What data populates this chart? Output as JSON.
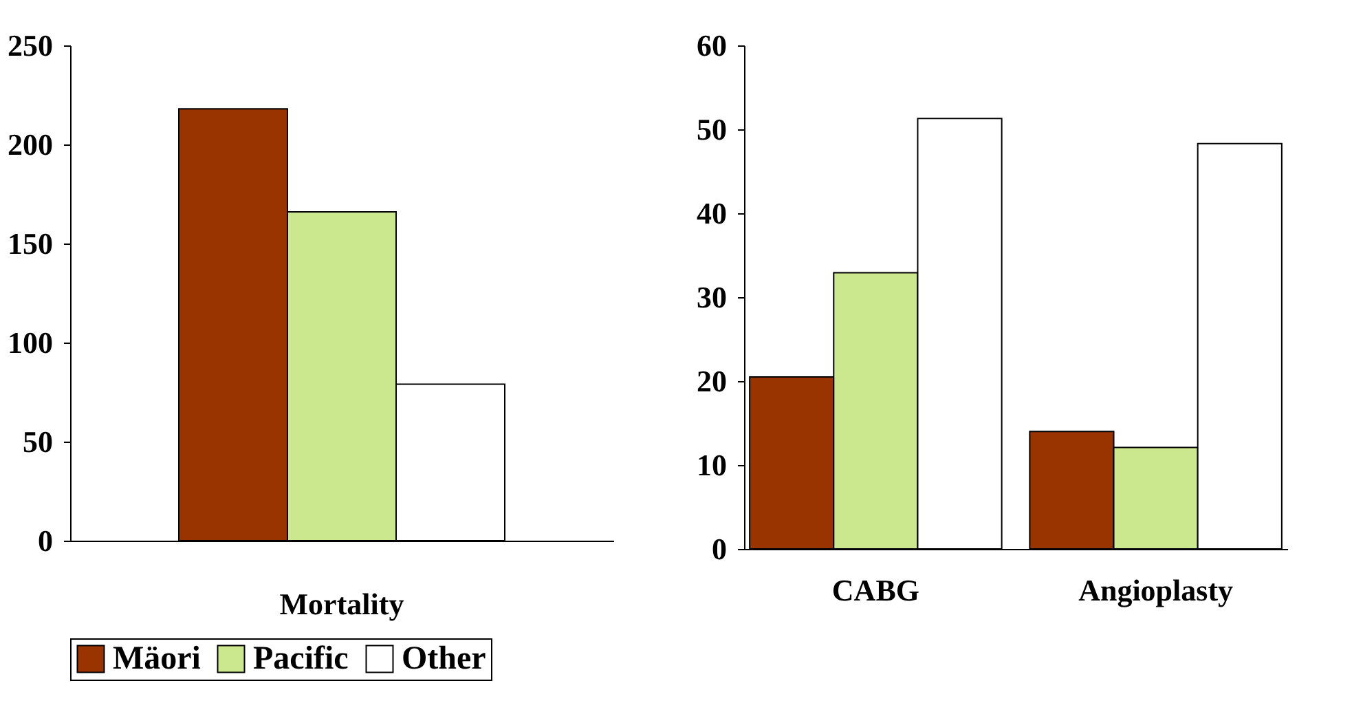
{
  "chart_data": [
    {
      "type": "bar",
      "categories": [
        null,
        "Mortality",
        null
      ],
      "series": [
        {
          "name": "Mäori",
          "color": "#993300",
          "values": [
            218,
            null,
            null
          ]
        },
        {
          "name": "Pacific",
          "color": "#cce88f",
          "values": [
            null,
            166,
            null
          ]
        },
        {
          "name": "Other",
          "color": "#ffffff",
          "values": [
            null,
            null,
            79
          ]
        }
      ],
      "ylim": [
        0,
        250
      ],
      "yticks": [
        0,
        50,
        100,
        150,
        200,
        250
      ],
      "grid": false,
      "legend": "bottom"
    },
    {
      "type": "bar",
      "categories": [
        "CABG",
        "Angioplasty"
      ],
      "series": [
        {
          "color": "#993300",
          "values": [
            20.5,
            14.0
          ]
        },
        {
          "color": "#cce88f",
          "values": [
            32.9,
            12.1
          ]
        },
        {
          "color": "#ffffff",
          "values": [
            51.3,
            48.3
          ]
        }
      ],
      "ylim": [
        0,
        60
      ],
      "yticks": [
        0,
        10,
        20,
        30,
        40,
        50,
        60
      ],
      "grid": false,
      "legend": false
    }
  ]
}
